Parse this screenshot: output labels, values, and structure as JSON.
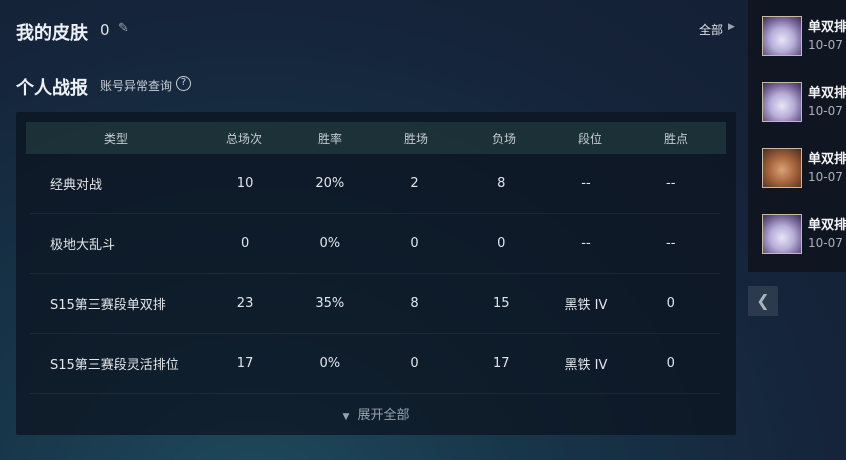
{
  "skins": {
    "title": "我的皮肤",
    "count": "0",
    "all_label": "全部"
  },
  "report": {
    "title": "个人战报",
    "query_label": "账号异常查询",
    "help": "?"
  },
  "table": {
    "headers": [
      "类型",
      "总场次",
      "胜率",
      "胜场",
      "负场",
      "段位",
      "胜点"
    ],
    "rows": [
      [
        "经典对战",
        "10",
        "20%",
        "2",
        "8",
        "--",
        "--"
      ],
      [
        "极地大乱斗",
        "0",
        "0%",
        "0",
        "0",
        "--",
        "--"
      ],
      [
        "S15第三赛段单双排",
        "23",
        "35%",
        "8",
        "15",
        "黑铁 IV",
        "0"
      ],
      [
        "S15第三赛段灵活排位",
        "17",
        "0%",
        "0",
        "17",
        "黑铁 IV",
        "0"
      ]
    ],
    "expand_label": "展开全部"
  },
  "matches": [
    {
      "mode": "单双排",
      "date": "10-07",
      "champion": "cat"
    },
    {
      "mode": "单双排",
      "date": "10-07",
      "champion": "cat"
    },
    {
      "mode": "单双排",
      "date": "10-07",
      "champion": "boy"
    },
    {
      "mode": "单双排",
      "date": "10-07",
      "champion": "cat"
    }
  ]
}
